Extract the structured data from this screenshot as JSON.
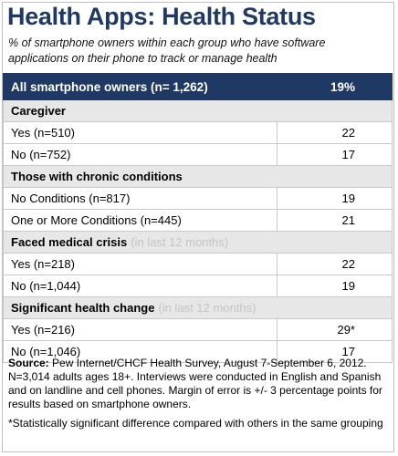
{
  "title": "Health Apps: Health Status",
  "subtitle": "% of smartphone owners within each group who have software applications on their phone to track or manage health",
  "header": {
    "label": "All smartphone owners (n= 1,262)",
    "value": "19%"
  },
  "chart_data": {
    "type": "table",
    "unit": "%",
    "sections": [
      {
        "heading": "Caregiver",
        "qualifier": "",
        "rows": [
          {
            "label": "Yes (n=510)",
            "value": "22"
          },
          {
            "label": "No (n=752)",
            "value": "17"
          }
        ]
      },
      {
        "heading": "Those with chronic conditions",
        "qualifier": "",
        "rows": [
          {
            "label": "No Conditions (n=817)",
            "value": "19"
          },
          {
            "label": "One or More Conditions (n=445)",
            "value": "21"
          }
        ]
      },
      {
        "heading": "Faced medical crisis",
        "qualifier": "(in last 12 months)",
        "rows": [
          {
            "label": "Yes (n=218)",
            "value": "22"
          },
          {
            "label": "No (n=1,044)",
            "value": "19"
          }
        ]
      },
      {
        "heading": "Significant health change",
        "qualifier": "(in last 12 months)",
        "rows": [
          {
            "label": "Yes (n=216)",
            "value": "29*"
          },
          {
            "label": "No (n=1,046)",
            "value": "17"
          }
        ]
      }
    ]
  },
  "source": {
    "label": "Source:",
    "text": " Pew Internet/CHCF Health Survey, August 7-September 6, 2012. N=3,014 adults ages 18+. Interviews were conducted in English and Spanish and on landline and cell phones.  Margin of error is +/- 3 percentage points for results based on smartphone owners."
  },
  "footnote": "*Statistically  significant difference compared with others in the same grouping"
}
